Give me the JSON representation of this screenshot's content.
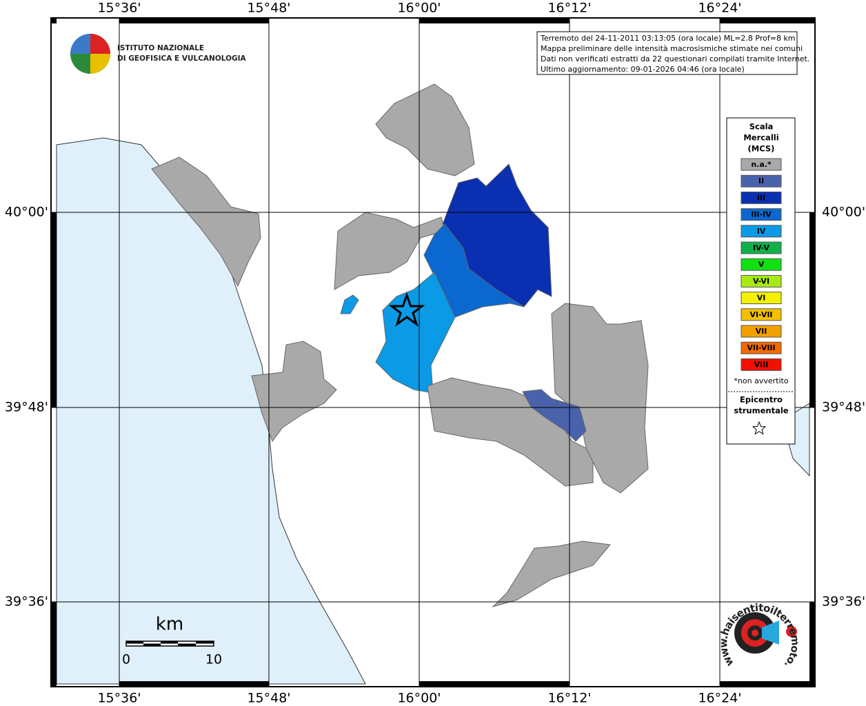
{
  "map": {
    "lon_labels": [
      "15°36'",
      "15°48'",
      "16°00'",
      "16°12'",
      "16°24'"
    ],
    "lat_labels": [
      "40°00'",
      "39°48'",
      "39°36'"
    ],
    "logo": {
      "line1": "ISTITUTO NAZIONALE",
      "line2": "DI GEOFISICA E VULCANOLOGIA"
    },
    "info": [
      "Terremoto del 24-11-2011 03:13:05 (ora locale) ML=2.8 Prof=8 km",
      "Mappa preliminare delle intensità macrosismiche stimate nei comuni",
      "Dati non verificati estratti da 22 questionari compilati tramite Internet.",
      "Ultimo aggiornamento: 09-01-2026 04:46 (ora locale)"
    ],
    "legend": {
      "title": [
        "Scala",
        "Mercalli",
        "(MCS)"
      ],
      "items": [
        {
          "label": "n.a.*",
          "color": "#a9a9a9"
        },
        {
          "label": "II",
          "color": "#4a62ab"
        },
        {
          "label": "III",
          "color": "#0a2fb0"
        },
        {
          "label": "III-IV",
          "color": "#0a68d0"
        },
        {
          "label": "IV",
          "color": "#0a9ae6"
        },
        {
          "label": "IV-V",
          "color": "#0fb04a"
        },
        {
          "label": "V",
          "color": "#10e010"
        },
        {
          "label": "V-VI",
          "color": "#a8ea10"
        },
        {
          "label": "VI",
          "color": "#f2f200"
        },
        {
          "label": "VI-VII",
          "color": "#f2c000"
        },
        {
          "label": "VII",
          "color": "#f2a000"
        },
        {
          "label": "VII-VIII",
          "color": "#f26a00"
        },
        {
          "label": "VIII",
          "color": "#f21000"
        }
      ],
      "note": "*non avvertito",
      "epicenter": [
        "Epicentro",
        "strumentale"
      ]
    },
    "scale": {
      "unit": "km",
      "start": "0",
      "end": "10"
    },
    "site": "www.haisentitoilterremoto.it"
  }
}
